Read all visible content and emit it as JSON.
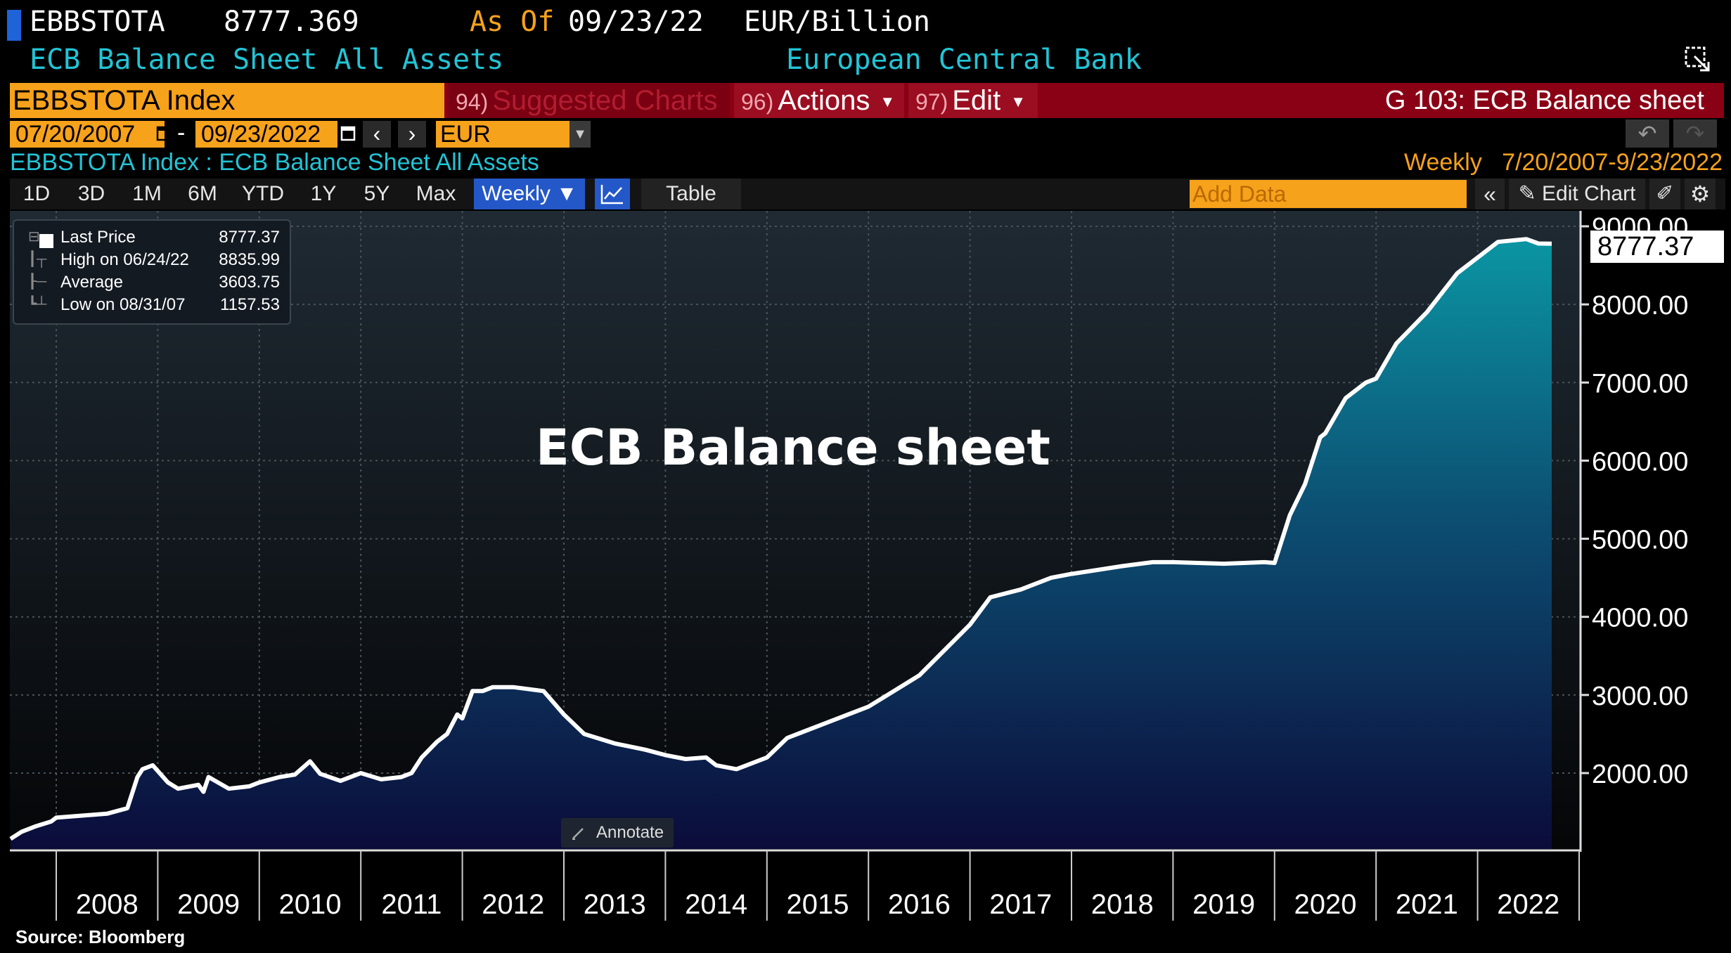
{
  "header": {
    "ticker": "EBBSTOTA",
    "last_value": "8777.369",
    "asof_label": "As Of",
    "asof_date": "09/23/22",
    "units": "EUR/Billion",
    "subtitle": "ECB Balance Sheet All Assets",
    "source_name": "European Central Bank"
  },
  "menubar": {
    "security": "EBBSTOTA Index",
    "suggested_num": "94)",
    "suggested_label": "Suggested Charts",
    "actions_num": "96)",
    "actions_label": "Actions",
    "edit_num": "97)",
    "edit_label": "Edit",
    "chart_title": "G 103: ECB Balance sheet"
  },
  "range_bar": {
    "date_from": "07/20/2007",
    "date_sep": "-",
    "date_to": "09/23/2022",
    "prev": "‹",
    "next": "›",
    "currency": "EUR"
  },
  "security_line": "EBBSTOTA Index : ECB Balance Sheet All Assets",
  "freq_range": "Weekly   7/20/2007-9/23/2022",
  "toolbar": {
    "periods": [
      "1D",
      "3D",
      "1M",
      "6M",
      "YTD",
      "1Y",
      "5Y",
      "Max"
    ],
    "weekly": "Weekly ▼",
    "table": "Table",
    "add_data_placeholder": "Add Data",
    "collapse": "«",
    "edit_chart": "Edit Chart"
  },
  "legend": {
    "rows": [
      {
        "label": "Last Price",
        "value": "8777.37"
      },
      {
        "label": "High on 06/24/22",
        "value": "8835.99"
      },
      {
        "label": "Average",
        "value": "3603.75"
      },
      {
        "label": "Low on 08/31/07",
        "value": "1157.53"
      }
    ]
  },
  "annotate_label": "Annotate",
  "last_flag": "8777.37",
  "source_label": "Source: Bloomberg",
  "colors": {
    "bloomberg_orange": "#f7a21b",
    "cyan_text": "#22c4d6",
    "menu_red": "#8a0015",
    "area_top": "#0a8a9a",
    "area_bottom": "#0b0b3a",
    "line": "#ffffff"
  },
  "chart_data": {
    "type": "area",
    "title": "ECB Balance sheet",
    "ylabel": "",
    "xlabel": "",
    "ylim": [
      1100,
      9200
    ],
    "xlim": [
      2007.55,
      2022.73
    ],
    "yticks": [
      2000,
      3000,
      4000,
      5000,
      6000,
      7000,
      8000,
      9000
    ],
    "ytick_labels": [
      "2000.00",
      "3000.00",
      "4000.00",
      "5000.00",
      "6000.00",
      "7000.00",
      "8000.00",
      "9000.00"
    ],
    "x_labels": [
      "2008",
      "2009",
      "2010",
      "2011",
      "2012",
      "2013",
      "2014",
      "2015",
      "2016",
      "2017",
      "2018",
      "2019",
      "2020",
      "2021",
      "2022"
    ],
    "grid": true,
    "series": [
      {
        "x": [
          2007.55,
          2007.66,
          2007.8,
          2007.95,
          2008.0,
          2008.2,
          2008.5,
          2008.7,
          2008.8,
          2008.85,
          2008.95,
          2009.1,
          2009.2,
          2009.4,
          2009.45,
          2009.5,
          2009.7,
          2009.9,
          2010.0,
          2010.2,
          2010.35,
          2010.5,
          2010.6,
          2010.8,
          2011.0,
          2011.2,
          2011.4,
          2011.5,
          2011.6,
          2011.75,
          2011.85,
          2011.95,
          2012.0,
          2012.1,
          2012.2,
          2012.3,
          2012.5,
          2012.8,
          2013.0,
          2013.2,
          2013.5,
          2013.8,
          2014.0,
          2014.2,
          2014.4,
          2014.5,
          2014.7,
          2014.8,
          2015.0,
          2015.2,
          2015.5,
          2015.8,
          2016.0,
          2016.5,
          2017.0,
          2017.2,
          2017.5,
          2017.8,
          2018.0,
          2018.5,
          2018.8,
          2019.0,
          2019.5,
          2019.9,
          2020.0,
          2020.15,
          2020.3,
          2020.45,
          2020.5,
          2020.7,
          2020.9,
          2021.0,
          2021.2,
          2021.5,
          2021.8,
          2022.0,
          2022.2,
          2022.48,
          2022.6,
          2022.73
        ],
        "values": [
          1157.53,
          1250,
          1320,
          1380,
          1430,
          1450,
          1480,
          1550,
          1950,
          2050,
          2100,
          1880,
          1800,
          1850,
          1760,
          1950,
          1800,
          1830,
          1880,
          1950,
          1980,
          2150,
          1990,
          1900,
          2000,
          1920,
          1950,
          2000,
          2200,
          2400,
          2500,
          2750,
          2700,
          3050,
          3050,
          3100,
          3100,
          3050,
          2750,
          2500,
          2380,
          2300,
          2230,
          2180,
          2200,
          2100,
          2050,
          2100,
          2200,
          2450,
          2600,
          2750,
          2850,
          3250,
          3900,
          4250,
          4350,
          4500,
          4550,
          4650,
          4700,
          4700,
          4680,
          4700,
          4690,
          5300,
          5700,
          6300,
          6350,
          6800,
          7000,
          7050,
          7500,
          7900,
          8400,
          8600,
          8800,
          8835.99,
          8780,
          8777.37
        ]
      }
    ]
  }
}
